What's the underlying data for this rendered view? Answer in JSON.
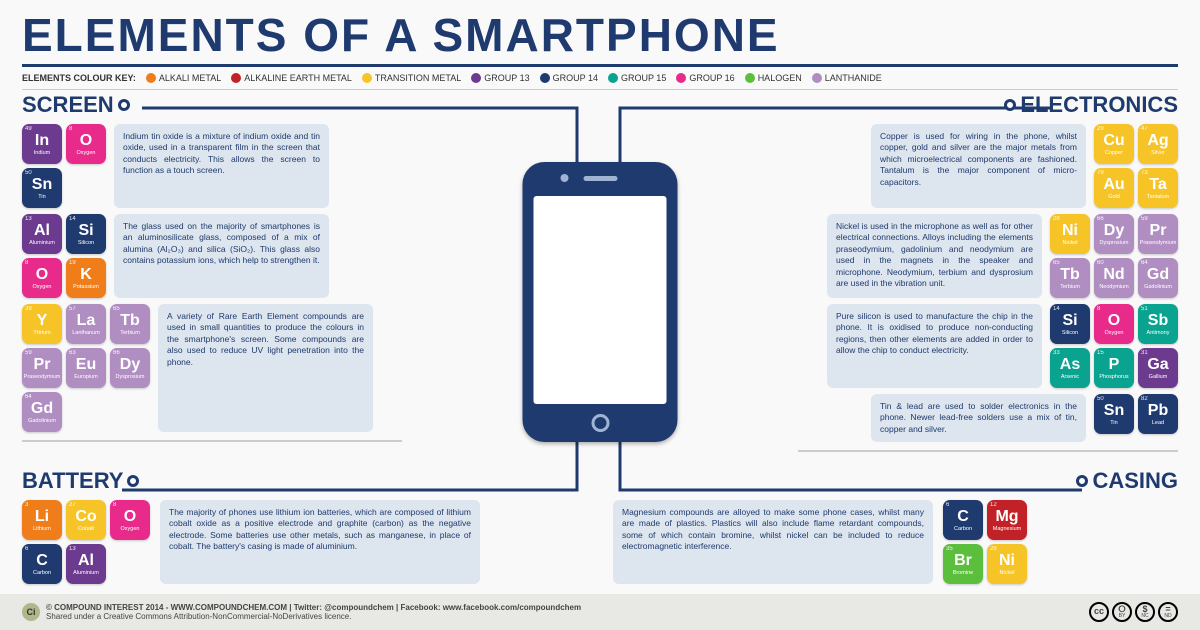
{
  "title": "ELEMENTS OF A SMARTPHONE",
  "colors": {
    "primary": "#1f3a6e",
    "descBg": "#dde5ee",
    "alkali": "#ef7e1a",
    "alkaline_earth": "#c12127",
    "transition": "#f7c427",
    "group13": "#6c3a8e",
    "group14": "#1f3a6e",
    "group15": "#0aa390",
    "group16": "#e82a8a",
    "halogen": "#5bbf3d",
    "lanthanide": "#b08ec2"
  },
  "legend": {
    "label": "ELEMENTS COLOUR KEY:",
    "items": [
      {
        "label": "ALKALI METAL",
        "color": "#ef7e1a"
      },
      {
        "label": "ALKALINE EARTH METAL",
        "color": "#c12127"
      },
      {
        "label": "TRANSITION METAL",
        "color": "#f7c427"
      },
      {
        "label": "GROUP 13",
        "color": "#6c3a8e"
      },
      {
        "label": "GROUP 14",
        "color": "#1f3a6e"
      },
      {
        "label": "GROUP 15",
        "color": "#0aa390"
      },
      {
        "label": "GROUP 16",
        "color": "#e82a8a"
      },
      {
        "label": "HALOGEN",
        "color": "#5bbf3d"
      },
      {
        "label": "LANTHANIDE",
        "color": "#b08ec2"
      }
    ]
  },
  "screen": {
    "title": "SCREEN",
    "blocks": [
      {
        "desc": "Indium tin oxide is a mixture of indium oxide and tin oxide, used in a transparent film in the screen that conducts electricity. This allows the screen to function as a touch screen.",
        "rows": [
          [
            {
              "n": "49",
              "s": "In",
              "m": "Indium",
              "c": "#6c3a8e"
            },
            {
              "n": "8",
              "s": "O",
              "m": "Oxygen",
              "c": "#e82a8a"
            }
          ],
          [
            {
              "n": "50",
              "s": "Sn",
              "m": "Tin",
              "c": "#1f3a6e"
            }
          ]
        ]
      },
      {
        "desc": "The glass used on the majority of smartphones is an aluminosilicate glass, composed of a mix of alumina (Al₂O₃) and silica (SiO₂). This glass also contains potassium ions, which help to strengthen it.",
        "rows": [
          [
            {
              "n": "13",
              "s": "Al",
              "m": "Aluminium",
              "c": "#6c3a8e"
            },
            {
              "n": "14",
              "s": "Si",
              "m": "Silicon",
              "c": "#1f3a6e"
            }
          ],
          [
            {
              "n": "8",
              "s": "O",
              "m": "Oxygen",
              "c": "#e82a8a"
            },
            {
              "n": "19",
              "s": "K",
              "m": "Potassium",
              "c": "#ef7e1a"
            }
          ]
        ]
      },
      {
        "desc": "A variety of Rare Earth Element compounds are used in small quantities to produce the colours in the smartphone's screen. Some compounds are also used to reduce UV light penetration into the phone.",
        "rows": [
          [
            {
              "n": "39",
              "s": "Y",
              "m": "Yttrium",
              "c": "#f7c427"
            },
            {
              "n": "57",
              "s": "La",
              "m": "Lanthanum",
              "c": "#b08ec2"
            },
            {
              "n": "65",
              "s": "Tb",
              "m": "Terbium",
              "c": "#b08ec2"
            }
          ],
          [
            {
              "n": "59",
              "s": "Pr",
              "m": "Praseodymium",
              "c": "#b08ec2"
            },
            {
              "n": "63",
              "s": "Eu",
              "m": "Europium",
              "c": "#b08ec2"
            },
            {
              "n": "66",
              "s": "Dy",
              "m": "Dysprosium",
              "c": "#b08ec2"
            }
          ],
          [
            {
              "n": "64",
              "s": "Gd",
              "m": "Gadolinium",
              "c": "#b08ec2"
            }
          ]
        ]
      }
    ]
  },
  "electronics": {
    "title": "ELECTRONICS",
    "blocks": [
      {
        "desc": "Copper is used for wiring in the phone, whilst copper, gold and silver are the major metals from which microelectrical components are fashioned. Tantalum is the major component of micro-capacitors.",
        "rows": [
          [
            {
              "n": "29",
              "s": "Cu",
              "m": "Copper",
              "c": "#f7c427"
            },
            {
              "n": "47",
              "s": "Ag",
              "m": "Silver",
              "c": "#f7c427"
            }
          ],
          [
            {
              "n": "79",
              "s": "Au",
              "m": "Gold",
              "c": "#f7c427"
            },
            {
              "n": "73",
              "s": "Ta",
              "m": "Tantalum",
              "c": "#f7c427"
            }
          ]
        ]
      },
      {
        "desc": "Nickel is used in the microphone as well as for other electrical connections. Alloys including the elements praseodymium, gadolinium and neodymium are used in the magnets in the speaker and microphone. Neodymium, terbium and dysprosium are used in the vibration unit.",
        "rows": [
          [
            {
              "n": "28",
              "s": "Ni",
              "m": "Nickel",
              "c": "#f7c427"
            },
            {
              "n": "66",
              "s": "Dy",
              "m": "Dysprosium",
              "c": "#b08ec2"
            },
            {
              "n": "59",
              "s": "Pr",
              "m": "Praseodymium",
              "c": "#b08ec2"
            }
          ],
          [
            {
              "n": "65",
              "s": "Tb",
              "m": "Terbium",
              "c": "#b08ec2"
            },
            {
              "n": "60",
              "s": "Nd",
              "m": "Neodymium",
              "c": "#b08ec2"
            },
            {
              "n": "64",
              "s": "Gd",
              "m": "Gadolinium",
              "c": "#b08ec2"
            }
          ]
        ]
      },
      {
        "desc": "Pure silicon is used to manufacture the chip in the phone. It is oxidised to produce non-conducting regions, then other elements are added in order to allow the chip to conduct electricity.",
        "rows": [
          [
            {
              "n": "14",
              "s": "Si",
              "m": "Silicon",
              "c": "#1f3a6e"
            },
            {
              "n": "8",
              "s": "O",
              "m": "Oxygen",
              "c": "#e82a8a"
            },
            {
              "n": "51",
              "s": "Sb",
              "m": "Antimony",
              "c": "#0aa390"
            }
          ],
          [
            {
              "n": "33",
              "s": "As",
              "m": "Arsenic",
              "c": "#0aa390"
            },
            {
              "n": "15",
              "s": "P",
              "m": "Phosphorus",
              "c": "#0aa390"
            },
            {
              "n": "31",
              "s": "Ga",
              "m": "Gallium",
              "c": "#6c3a8e"
            }
          ]
        ]
      },
      {
        "desc": "Tin & lead are used to solder electronics in the phone. Newer lead-free solders use a mix of tin, copper and silver.",
        "rows": [
          [
            {
              "n": "50",
              "s": "Sn",
              "m": "Tin",
              "c": "#1f3a6e"
            },
            {
              "n": "82",
              "s": "Pb",
              "m": "Lead",
              "c": "#1f3a6e"
            }
          ]
        ]
      }
    ]
  },
  "battery": {
    "title": "BATTERY",
    "desc": "The majority of phones use lithium ion batteries, which are composed of lithium cobalt oxide as a positive electrode and graphite (carbon) as the negative electrode. Some batteries use other metals, such as manganese, in place of cobalt. The battery's casing is made of aluminium.",
    "rows": [
      [
        {
          "n": "3",
          "s": "Li",
          "m": "Lithium",
          "c": "#ef7e1a"
        },
        {
          "n": "27",
          "s": "Co",
          "m": "Cobalt",
          "c": "#f7c427"
        },
        {
          "n": "8",
          "s": "O",
          "m": "Oxygen",
          "c": "#e82a8a"
        }
      ],
      [
        {
          "n": "6",
          "s": "C",
          "m": "Carbon",
          "c": "#1f3a6e"
        },
        {
          "n": "13",
          "s": "Al",
          "m": "Aluminium",
          "c": "#6c3a8e"
        }
      ]
    ]
  },
  "casing": {
    "title": "CASING",
    "desc": "Magnesium compounds are alloyed to make some phone cases, whilst many are made of plastics. Plastics will also include flame retardant compounds, some of which contain bromine, whilst nickel can be included to reduce electromagnetic interference.",
    "rows": [
      [
        {
          "n": "6",
          "s": "C",
          "m": "Carbon",
          "c": "#1f3a6e"
        },
        {
          "n": "12",
          "s": "Mg",
          "m": "Magnesium",
          "c": "#c12127"
        }
      ],
      [
        {
          "n": "35",
          "s": "Br",
          "m": "Bromine",
          "c": "#5bbf3d"
        },
        {
          "n": "28",
          "s": "Ni",
          "m": "Nickel",
          "c": "#f7c427"
        }
      ]
    ]
  },
  "footer": {
    "line1": "© COMPOUND INTEREST 2014 - WWW.COMPOUNDCHEM.COM  |  Twitter: @compoundchem  |  Facebook: www.facebook.com/compoundchem",
    "line2": "Shared under a Creative Commons Attribution-NonCommercial-NoDerivatives licence.",
    "cc": [
      "cc",
      "BY",
      "NC",
      "ND"
    ]
  }
}
